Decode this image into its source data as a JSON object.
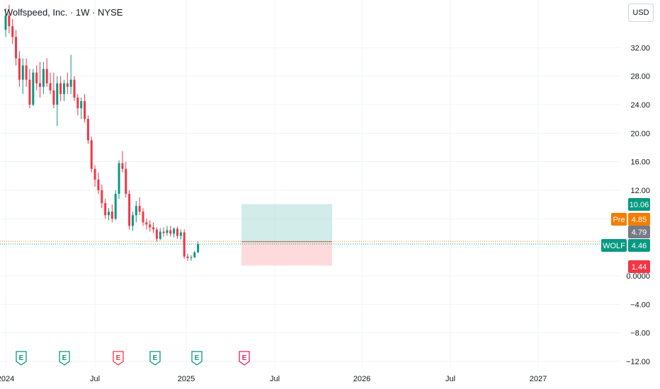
{
  "header": {
    "title": "Wolfspeed, Inc. · 1W · NYSE",
    "currency": "USD"
  },
  "colors": {
    "up": "#089981",
    "down": "#f23645",
    "pre": "#f57c00",
    "grid": "#f0f3fa",
    "axis_text": "#131722",
    "profit_zone": "#b2dfdb",
    "loss_zone": "#ffcdd2"
  },
  "chart_data": {
    "type": "candlestick",
    "symbol": "WOLF",
    "y_ticks": [
      "32.00",
      "28.00",
      "24.00",
      "20.00",
      "16.00",
      "12.00",
      "0.0000",
      "−4.00",
      "−8.00",
      "−12.00"
    ],
    "y_tick_values": [
      32,
      28,
      24,
      20,
      16,
      12,
      0,
      -4,
      -8,
      -12
    ],
    "x_ticks": [
      "2024",
      "Jul",
      "2025",
      "Jul",
      "2026",
      "Jul",
      "2027"
    ],
    "ylim": [
      -13.2,
      38.2
    ],
    "price_labels": [
      {
        "id": "target",
        "text": "10.06",
        "value": 10.06,
        "color": "#089981"
      },
      {
        "id": "pre",
        "prefix": "Pre",
        "text": "4.85",
        "value": 4.85,
        "color": "#f57c00"
      },
      {
        "id": "entry",
        "text": "4.79",
        "value": 4.79,
        "color": "#787b86"
      },
      {
        "id": "last",
        "prefix": "WOLF",
        "text": "4.46",
        "value": 4.46,
        "color": "#089981"
      },
      {
        "id": "stop",
        "text": "1.44",
        "value": 1.44,
        "color": "#f23645"
      }
    ],
    "position": {
      "entry": 4.79,
      "target": 10.06,
      "stop": 1.44
    },
    "earnings": [
      {
        "label": "E",
        "color": "#089981"
      },
      {
        "label": "E",
        "color": "#089981"
      },
      {
        "label": "E",
        "color": "#f23645"
      },
      {
        "label": "E",
        "color": "#089981"
      },
      {
        "label": "E",
        "color": "#089981"
      },
      {
        "label": "E",
        "color": "#e91e63"
      }
    ],
    "candles": [
      [
        34.5,
        37.5,
        33.5,
        36.5
      ],
      [
        36.5,
        38,
        34,
        35
      ],
      [
        35,
        36,
        32.5,
        33.5
      ],
      [
        33.5,
        34.5,
        29.5,
        30.5
      ],
      [
        30.5,
        31.5,
        26.5,
        27.5
      ],
      [
        27.5,
        30.5,
        25.5,
        29.5
      ],
      [
        29.5,
        30.5,
        26.5,
        27.5
      ],
      [
        27.5,
        29,
        23.5,
        24
      ],
      [
        24,
        29,
        23.8,
        28.5
      ],
      [
        28.5,
        29.5,
        26,
        27
      ],
      [
        27,
        30,
        25,
        26.5
      ],
      [
        26.5,
        30,
        25.5,
        29
      ],
      [
        29,
        30.5,
        26.5,
        27
      ],
      [
        27,
        28.5,
        25.5,
        26
      ],
      [
        26,
        28.5,
        23.5,
        24
      ],
      [
        24,
        28,
        21,
        27
      ],
      [
        27,
        28,
        24.5,
        25.5
      ],
      [
        25.5,
        27.5,
        24.5,
        27
      ],
      [
        27,
        28.5,
        25.5,
        26.5
      ],
      [
        26.5,
        31,
        25.5,
        27.5
      ],
      [
        27.5,
        28,
        24.5,
        25
      ],
      [
        25,
        25.5,
        22.5,
        23.5
      ],
      [
        23.5,
        25,
        22,
        24.5
      ],
      [
        24.5,
        25.5,
        21.5,
        22
      ],
      [
        22,
        22.5,
        18.5,
        19
      ],
      [
        19,
        19.5,
        14.5,
        15
      ],
      [
        15,
        15.5,
        12.5,
        13.5
      ],
      [
        13.5,
        14.5,
        11.5,
        12
      ],
      [
        12,
        12.8,
        9.5,
        10.2
      ],
      [
        10.2,
        10.8,
        8,
        8.5
      ],
      [
        8.5,
        9.5,
        7.8,
        9
      ],
      [
        9,
        10,
        7.5,
        8
      ],
      [
        8,
        12,
        7.8,
        11.5
      ],
      [
        11.5,
        16.2,
        10.8,
        15.8
      ],
      [
        15.8,
        17.5,
        14.5,
        15
      ],
      [
        15,
        16,
        11,
        11.5
      ],
      [
        11.5,
        12,
        6.5,
        7
      ],
      [
        7,
        9,
        6.3,
        8.5
      ],
      [
        8.5,
        10.5,
        7.5,
        9.8
      ],
      [
        9.8,
        11,
        8.5,
        9
      ],
      [
        9,
        9.5,
        7,
        7.5
      ],
      [
        7.5,
        8,
        6.5,
        7.2
      ],
      [
        7.2,
        7.8,
        6.2,
        6.8
      ],
      [
        6.8,
        7.5,
        6,
        6.5
      ],
      [
        6.5,
        6.8,
        4.8,
        5.2
      ],
      [
        5.2,
        6.7,
        5,
        6.2
      ],
      [
        6.2,
        6.8,
        5.5,
        6
      ],
      [
        6,
        7,
        5.6,
        6.4
      ],
      [
        6.4,
        7,
        5.5,
        5.9
      ],
      [
        5.9,
        6.8,
        5.4,
        6.6
      ],
      [
        6.6,
        6.9,
        5.2,
        5.6
      ],
      [
        5.6,
        6.5,
        5.1,
        6.1
      ],
      [
        6.1,
        6.5,
        2.4,
        2.7
      ],
      [
        2.7,
        3.1,
        2.1,
        2.5
      ],
      [
        2.5,
        2.9,
        2.1,
        2.6
      ],
      [
        2.6,
        3.5,
        2.5,
        3.3
      ],
      [
        3.3,
        4.8,
        3.2,
        4.46
      ]
    ]
  }
}
